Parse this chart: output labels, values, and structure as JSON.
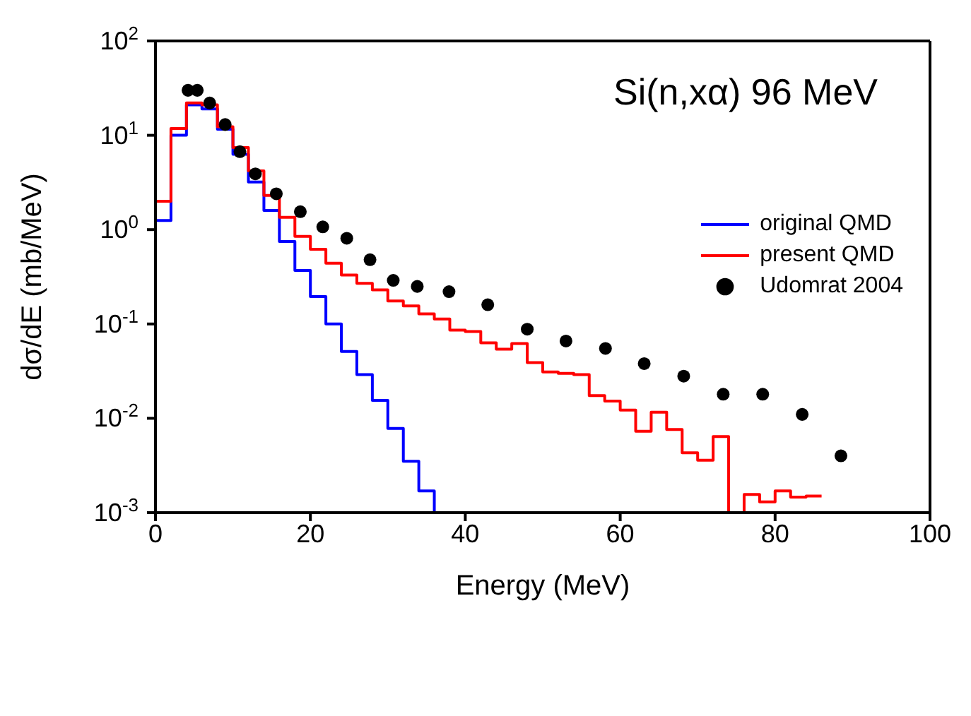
{
  "chart_data": {
    "type": "histogram",
    "title": "Si(n,xα) 96 MeV",
    "xlabel": "Energy (MeV)",
    "ylabel": "dσ/dE (mb/MeV)",
    "xlim": [
      0,
      100
    ],
    "xticks": [
      0,
      20,
      40,
      60,
      80,
      100
    ],
    "ylim": [
      0.001,
      100
    ],
    "yticks": [
      {
        "value": 0.001,
        "label": "10$^{-3}$"
      },
      {
        "value": 0.01,
        "label": "10$^{-2}$"
      },
      {
        "value": 0.1,
        "label": "10$^{-1}$"
      },
      {
        "value": 1,
        "label": "10$^{0}$"
      },
      {
        "value": 10,
        "label": "10$^{1}$"
      },
      {
        "value": 100,
        "label": "10$^{2}$"
      }
    ],
    "log": "y",
    "legend": "top right",
    "bins": [
      0,
      2,
      4,
      6,
      8,
      10,
      12,
      14,
      16,
      18,
      20,
      22,
      24,
      26,
      28,
      30,
      32,
      34,
      36,
      38,
      40,
      42,
      44,
      46,
      48,
      50,
      52,
      54,
      56,
      58,
      60,
      62,
      64,
      66,
      68,
      70,
      72,
      74,
      76,
      78,
      80,
      82,
      84,
      86
    ],
    "series": [
      {
        "name": "original QMD",
        "color": "#0000ff",
        "values": [
          1.25,
          10,
          21,
          19,
          11.6,
          6.3,
          3.2,
          1.6,
          0.75,
          0.37,
          0.195,
          0.1,
          0.051,
          0.029,
          0.0155,
          0.0078,
          0.0035,
          0.0017,
          0.001,
          null,
          null,
          null,
          null,
          null,
          null,
          null,
          null,
          null,
          null,
          null,
          null,
          null,
          null,
          null,
          null,
          null,
          null,
          null,
          null,
          null,
          null,
          null,
          null
        ]
      },
      {
        "name": "present QMD",
        "color": "#ff0000",
        "values": [
          2.0,
          11.8,
          22,
          21,
          12.3,
          7.4,
          4.2,
          2.3,
          1.35,
          0.85,
          0.62,
          0.44,
          0.33,
          0.27,
          0.23,
          0.175,
          0.155,
          0.128,
          0.113,
          0.086,
          0.083,
          0.063,
          0.054,
          0.062,
          0.039,
          0.031,
          0.03,
          0.029,
          0.0174,
          0.0152,
          0.0122,
          0.0073,
          0.0116,
          0.0076,
          0.0043,
          0.0036,
          0.0064,
          null,
          0.00156,
          0.0013,
          0.0017,
          0.00146,
          0.0015
        ]
      },
      {
        "name": "Udomrat 2004",
        "type": "scatter",
        "color": "#000000",
        "marker": "circle",
        "x": [
          4.2,
          5.4,
          7.0,
          9.0,
          10.9,
          12.9,
          15.6,
          18.7,
          21.6,
          24.7,
          27.7,
          30.7,
          33.8,
          37.9,
          42.9,
          48.0,
          53.0,
          58.1,
          63.1,
          68.2,
          73.3,
          78.4,
          83.5,
          88.5
        ],
        "values": [
          30,
          30,
          22,
          13,
          6.7,
          3.9,
          2.4,
          1.55,
          1.07,
          0.81,
          0.48,
          0.29,
          0.25,
          0.22,
          0.16,
          0.088,
          0.066,
          0.055,
          0.038,
          0.028,
          0.018,
          0.018,
          0.011,
          0.004
        ]
      }
    ]
  }
}
